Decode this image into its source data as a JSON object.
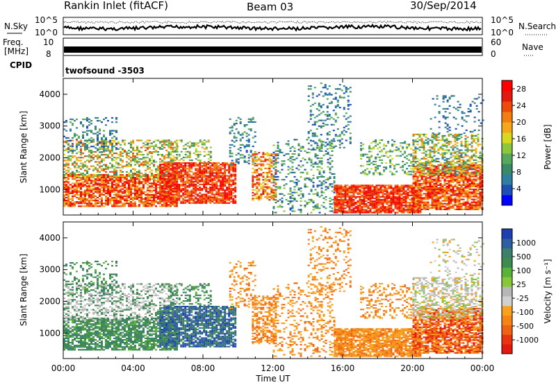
{
  "header": {
    "station": "Rankin Inlet (fitACF)",
    "beam": "Beam 03",
    "date": "30/Sep/2014"
  },
  "top_panels": {
    "nsky_label": "N.Sky",
    "nsky_ticks": [
      "10^5",
      "10^0"
    ],
    "nsearch_label": "N.Search",
    "nsearch_ticks": [
      "10^5",
      "10^0"
    ],
    "freq_label_line1": "Freq.",
    "freq_label_line2": "[MHz]",
    "freq_ticks": [
      "10",
      "8"
    ],
    "nave_label": "Nave",
    "nave_ticks": [
      "60",
      "0"
    ],
    "cpid_label": "CPID",
    "cpid_value": "twofsound -3503"
  },
  "colors": {
    "power_scale": [
      "#0000ff",
      "#1e4fb4",
      "#2f7fa0",
      "#3a8a68",
      "#56a85a",
      "#8cc63c",
      "#d8d820",
      "#f2a81a",
      "#f27d10",
      "#ee4a0c",
      "#e21a10",
      "#ff0000"
    ],
    "velocity_scale": [
      "#1f3fb0",
      "#2f5fa0",
      "#3c7f6a",
      "#3f8a50",
      "#59b23a",
      "#87c83a",
      "#b7b7b7",
      "#d0d0d0",
      "#f6a21e",
      "#f48318",
      "#ee6414",
      "#e8340f",
      "#e21a10"
    ]
  },
  "chart_data": [
    {
      "type": "heatmap",
      "name": "power",
      "ylabel": "Slant Range [km]",
      "yticks": [
        1000,
        2000,
        3000,
        4000
      ],
      "ylim": [
        200,
        4500
      ],
      "xlim_hours": [
        0,
        24
      ],
      "colorbar": {
        "label": "Power [dB]",
        "ticks": [
          4,
          8,
          12,
          16,
          20,
          24,
          28
        ],
        "range": [
          0,
          30
        ]
      }
    },
    {
      "type": "heatmap",
      "name": "velocity",
      "ylabel": "Slant Range [km]",
      "yticks": [
        1000,
        2000,
        3000,
        4000
      ],
      "ylim": [
        200,
        4500
      ],
      "xlim_hours": [
        0,
        24
      ],
      "xlabel": "Time UT",
      "xticks": [
        "00:00",
        "04:00",
        "08:00",
        "12:00",
        "16:00",
        "20:00",
        "00:00"
      ],
      "colorbar": {
        "label": "Velocity [m s⁻¹]",
        "ticks": [
          1000,
          500,
          100,
          25,
          -25,
          -100,
          -500,
          -1000
        ]
      }
    }
  ]
}
